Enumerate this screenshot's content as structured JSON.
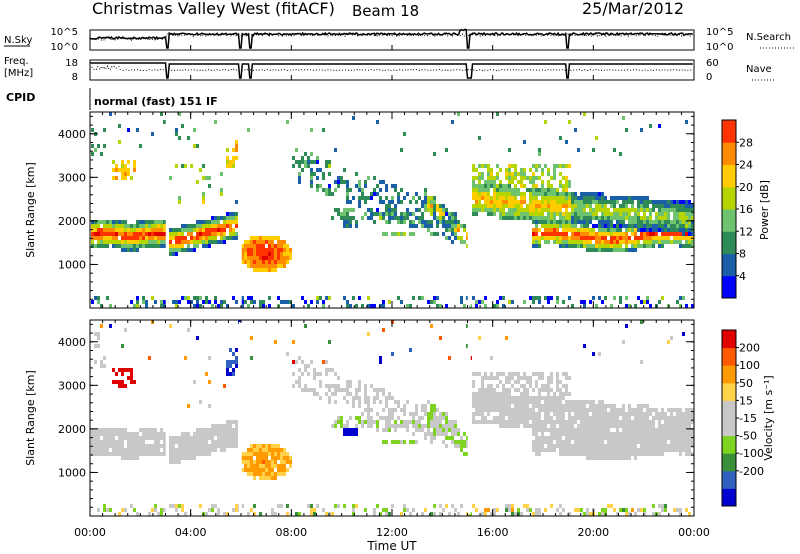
{
  "header": {
    "title": "Christmas Valley West (fitACF)",
    "beam": "Beam 18",
    "date": "25/Mar/2012"
  },
  "strip_labels": {
    "nsky": "N.Sky",
    "nsearch": "N.Search",
    "freq": "Freq.",
    "freq_unit": "[MHz]",
    "nave": "Nave",
    "cpid": "CPID",
    "mode": "normal (fast) 151 IF",
    "noise_ticks": [
      "10^5",
      "10^0"
    ],
    "freq_ticks": [
      "18",
      "8"
    ],
    "nave_ticks": [
      "60",
      "0"
    ]
  },
  "colors": {
    "power": [
      "#0000ff",
      "#1a5fa8",
      "#2e8b57",
      "#6fc36f",
      "#b5d400",
      "#ffcc00",
      "#ff8c00",
      "#ff3300",
      "#e00000"
    ],
    "velocity": [
      "#e00000",
      "#ff5a00",
      "#ff9a00",
      "#ffd24a",
      "#c8c8c8",
      "#c8c8c8",
      "#7ed321",
      "#3a8f3a",
      "#3060c0",
      "#0000d0"
    ]
  },
  "chart_data": [
    {
      "type": "heatmap",
      "name": "power",
      "ylabel": "Slant Range [km]",
      "yticks": [
        "1000",
        "2000",
        "3000",
        "4000"
      ],
      "colorbar_label": "Power [dB]",
      "colorbar_ticks": [
        "4",
        "8",
        "12",
        "16",
        "20",
        "24",
        "28"
      ],
      "clim": [
        0,
        32
      ]
    },
    {
      "type": "heatmap",
      "name": "velocity",
      "ylabel": "Slant Range [km]",
      "yticks": [
        "1000",
        "2000",
        "3000",
        "4000"
      ],
      "colorbar_label": "Velocity [m s⁻¹]",
      "colorbar_ticks": [
        "200",
        "100",
        "50",
        "15",
        "-15",
        "-50",
        "-100",
        "-200"
      ],
      "clim": [
        -250,
        250
      ]
    }
  ],
  "x_axis": {
    "label": "Time UT",
    "ticks": [
      "00:00",
      "04:00",
      "08:00",
      "12:00",
      "16:00",
      "20:00",
      "00:00"
    ],
    "range_hours": [
      0,
      24
    ]
  },
  "y_axis": {
    "range_km": [
      0,
      4500
    ]
  }
}
